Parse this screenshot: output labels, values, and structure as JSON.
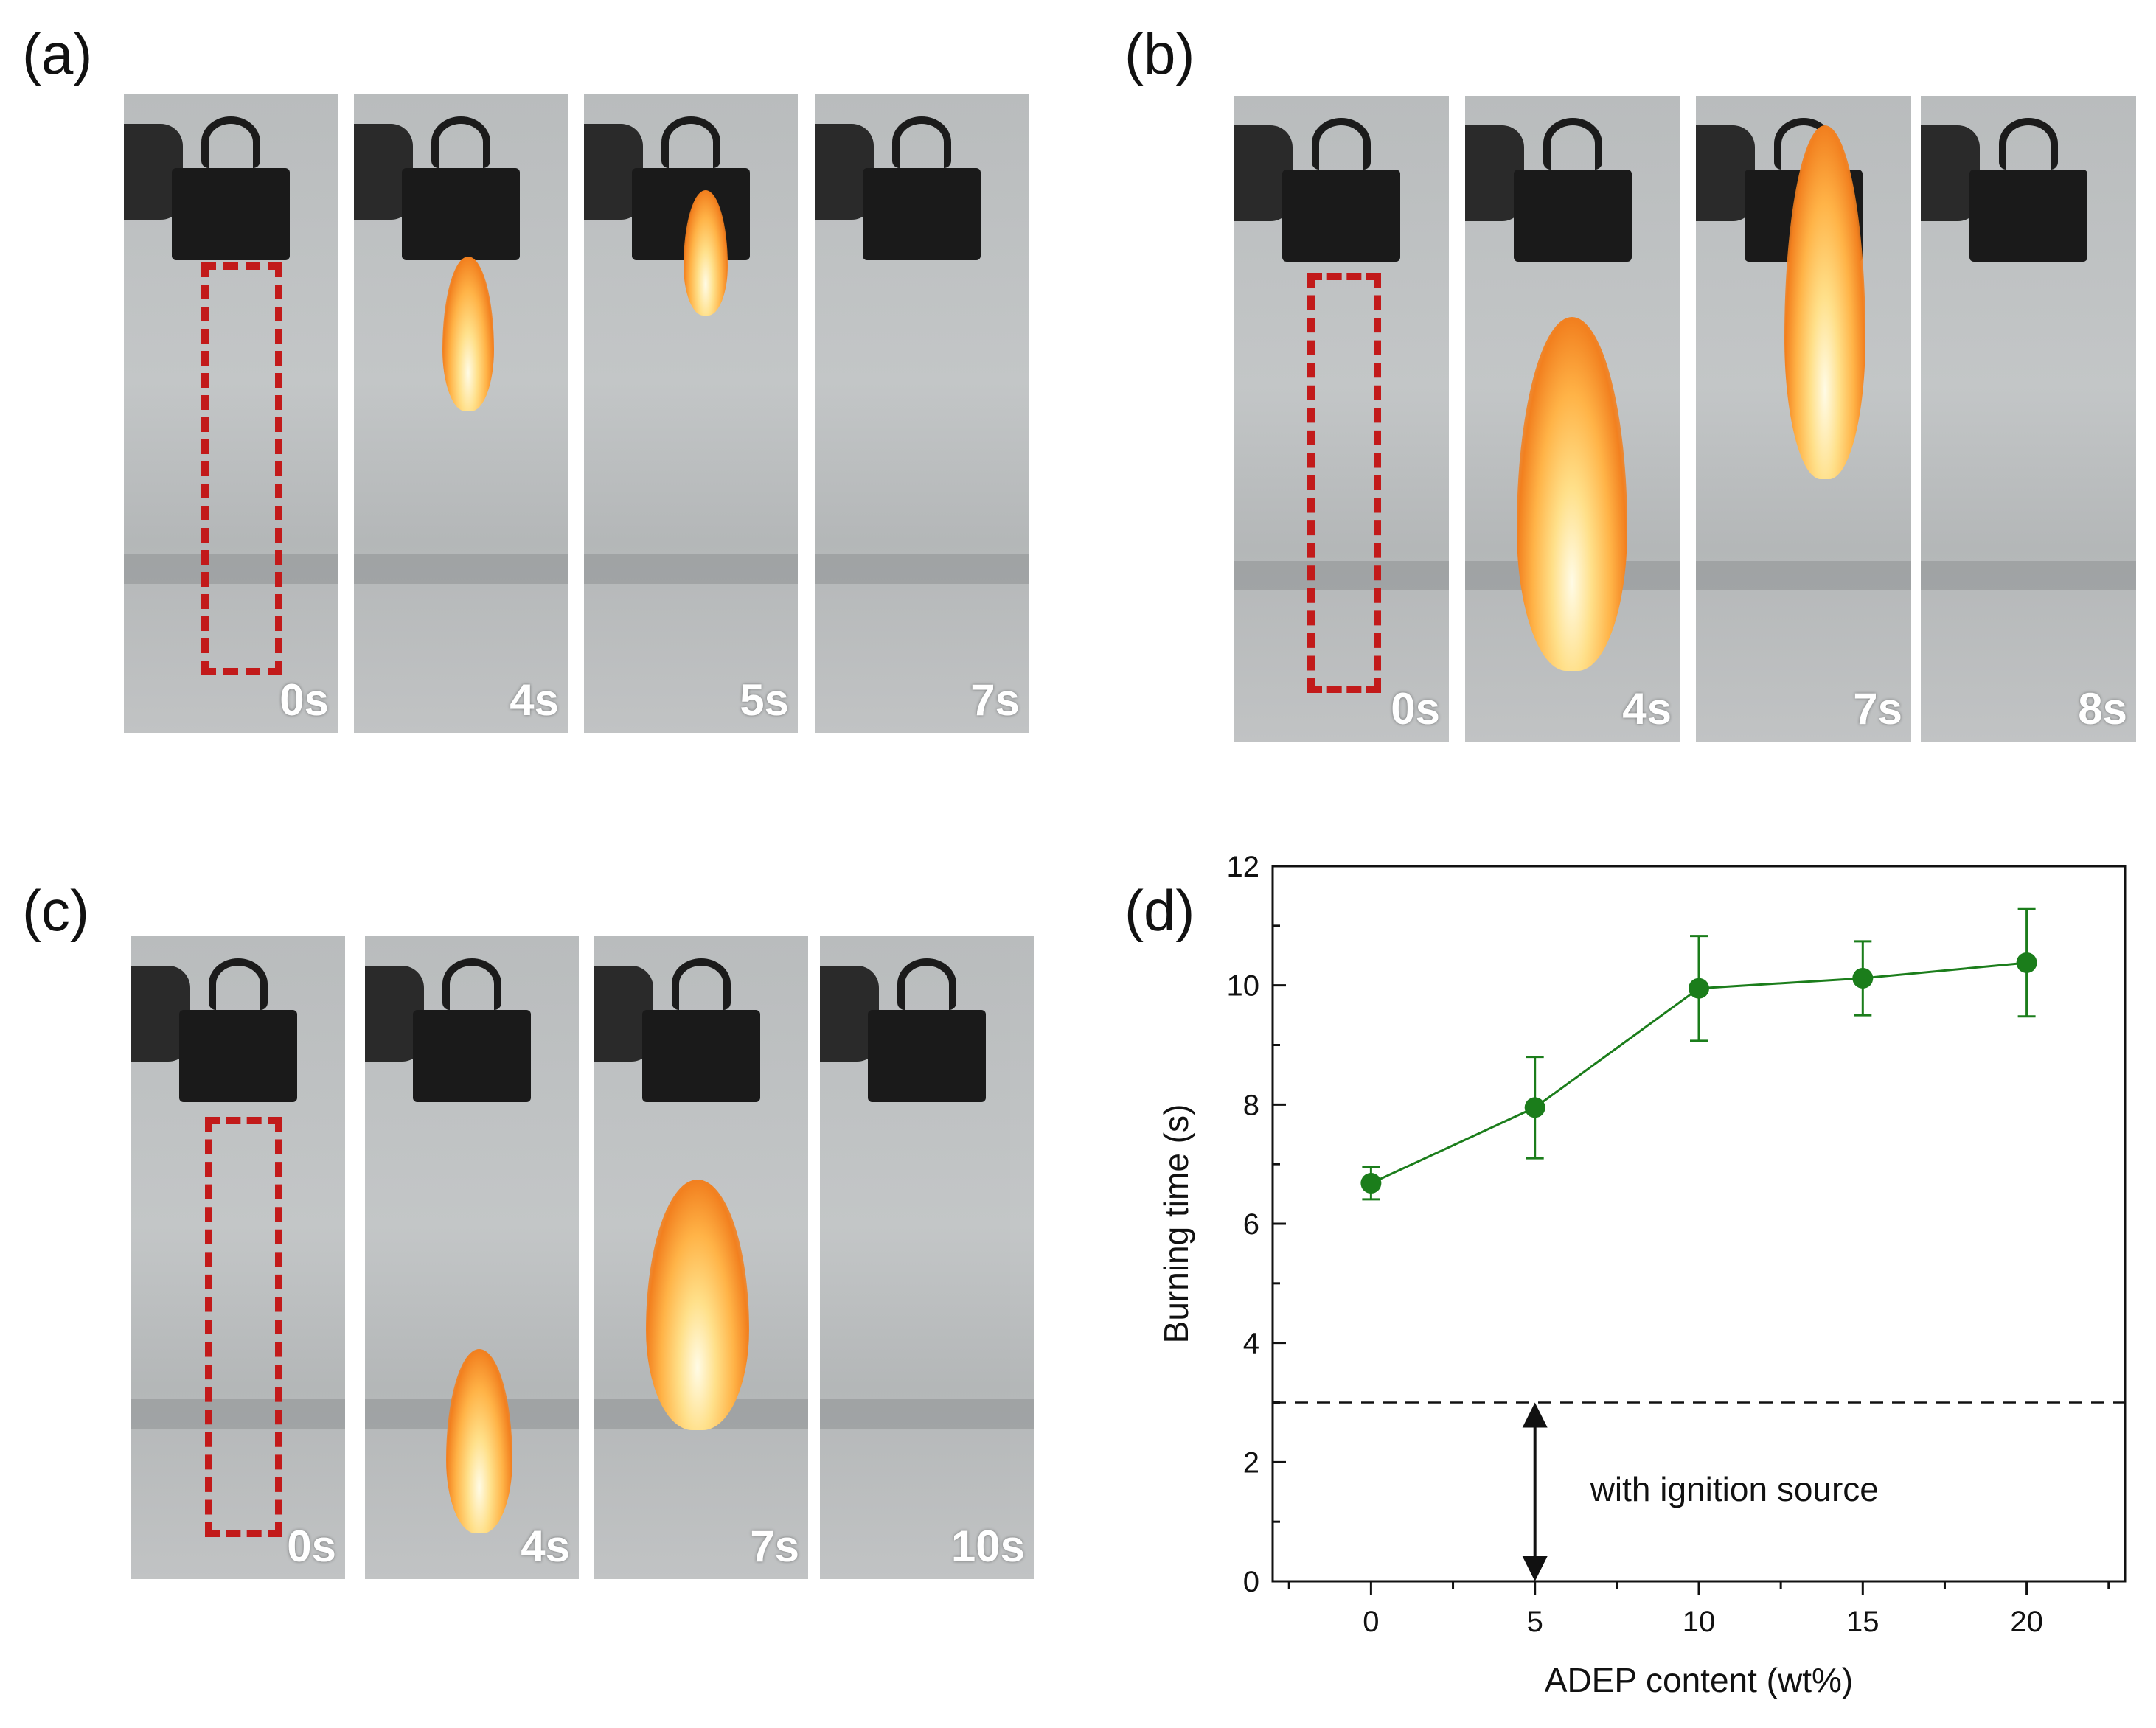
{
  "panels": {
    "a": {
      "label": "(a)",
      "times": [
        "0s",
        "4s",
        "5s",
        "7s"
      ]
    },
    "b": {
      "label": "(b)",
      "times": [
        "0s",
        "4s",
        "7s",
        "8s"
      ]
    },
    "c": {
      "label": "(c)",
      "times": [
        "0s",
        "4s",
        "7s",
        "10s"
      ]
    },
    "d": {
      "label": "(d)"
    }
  },
  "colors": {
    "series": "#1b7d1b",
    "dashbox": "#c21a1a",
    "flame": "#ffb347"
  },
  "chart_data": {
    "type": "scatter",
    "title": "",
    "xlabel": "ADEP content (wt%)",
    "ylabel": "Burning time (s)",
    "xlim": [
      -3,
      23
    ],
    "ylim": [
      0,
      12
    ],
    "xticks": [
      "0",
      "5",
      "10",
      "15",
      "20"
    ],
    "yticks": [
      "0",
      "2",
      "4",
      "6",
      "8",
      "10",
      "12"
    ],
    "series": [
      {
        "x": [
          0,
          5,
          10,
          15,
          20
        ],
        "y": [
          6.68,
          7.95,
          9.95,
          10.12,
          10.38
        ],
        "yerr": [
          0.27,
          0.85,
          0.88,
          0.62,
          0.9
        ],
        "line": true,
        "marker": "circle"
      }
    ],
    "reference_line": {
      "y": 3,
      "style": "dashed"
    },
    "annotation": {
      "text": "with ignition source",
      "arrow_x": 5,
      "arrow_from": 3,
      "arrow_to": 0
    }
  }
}
